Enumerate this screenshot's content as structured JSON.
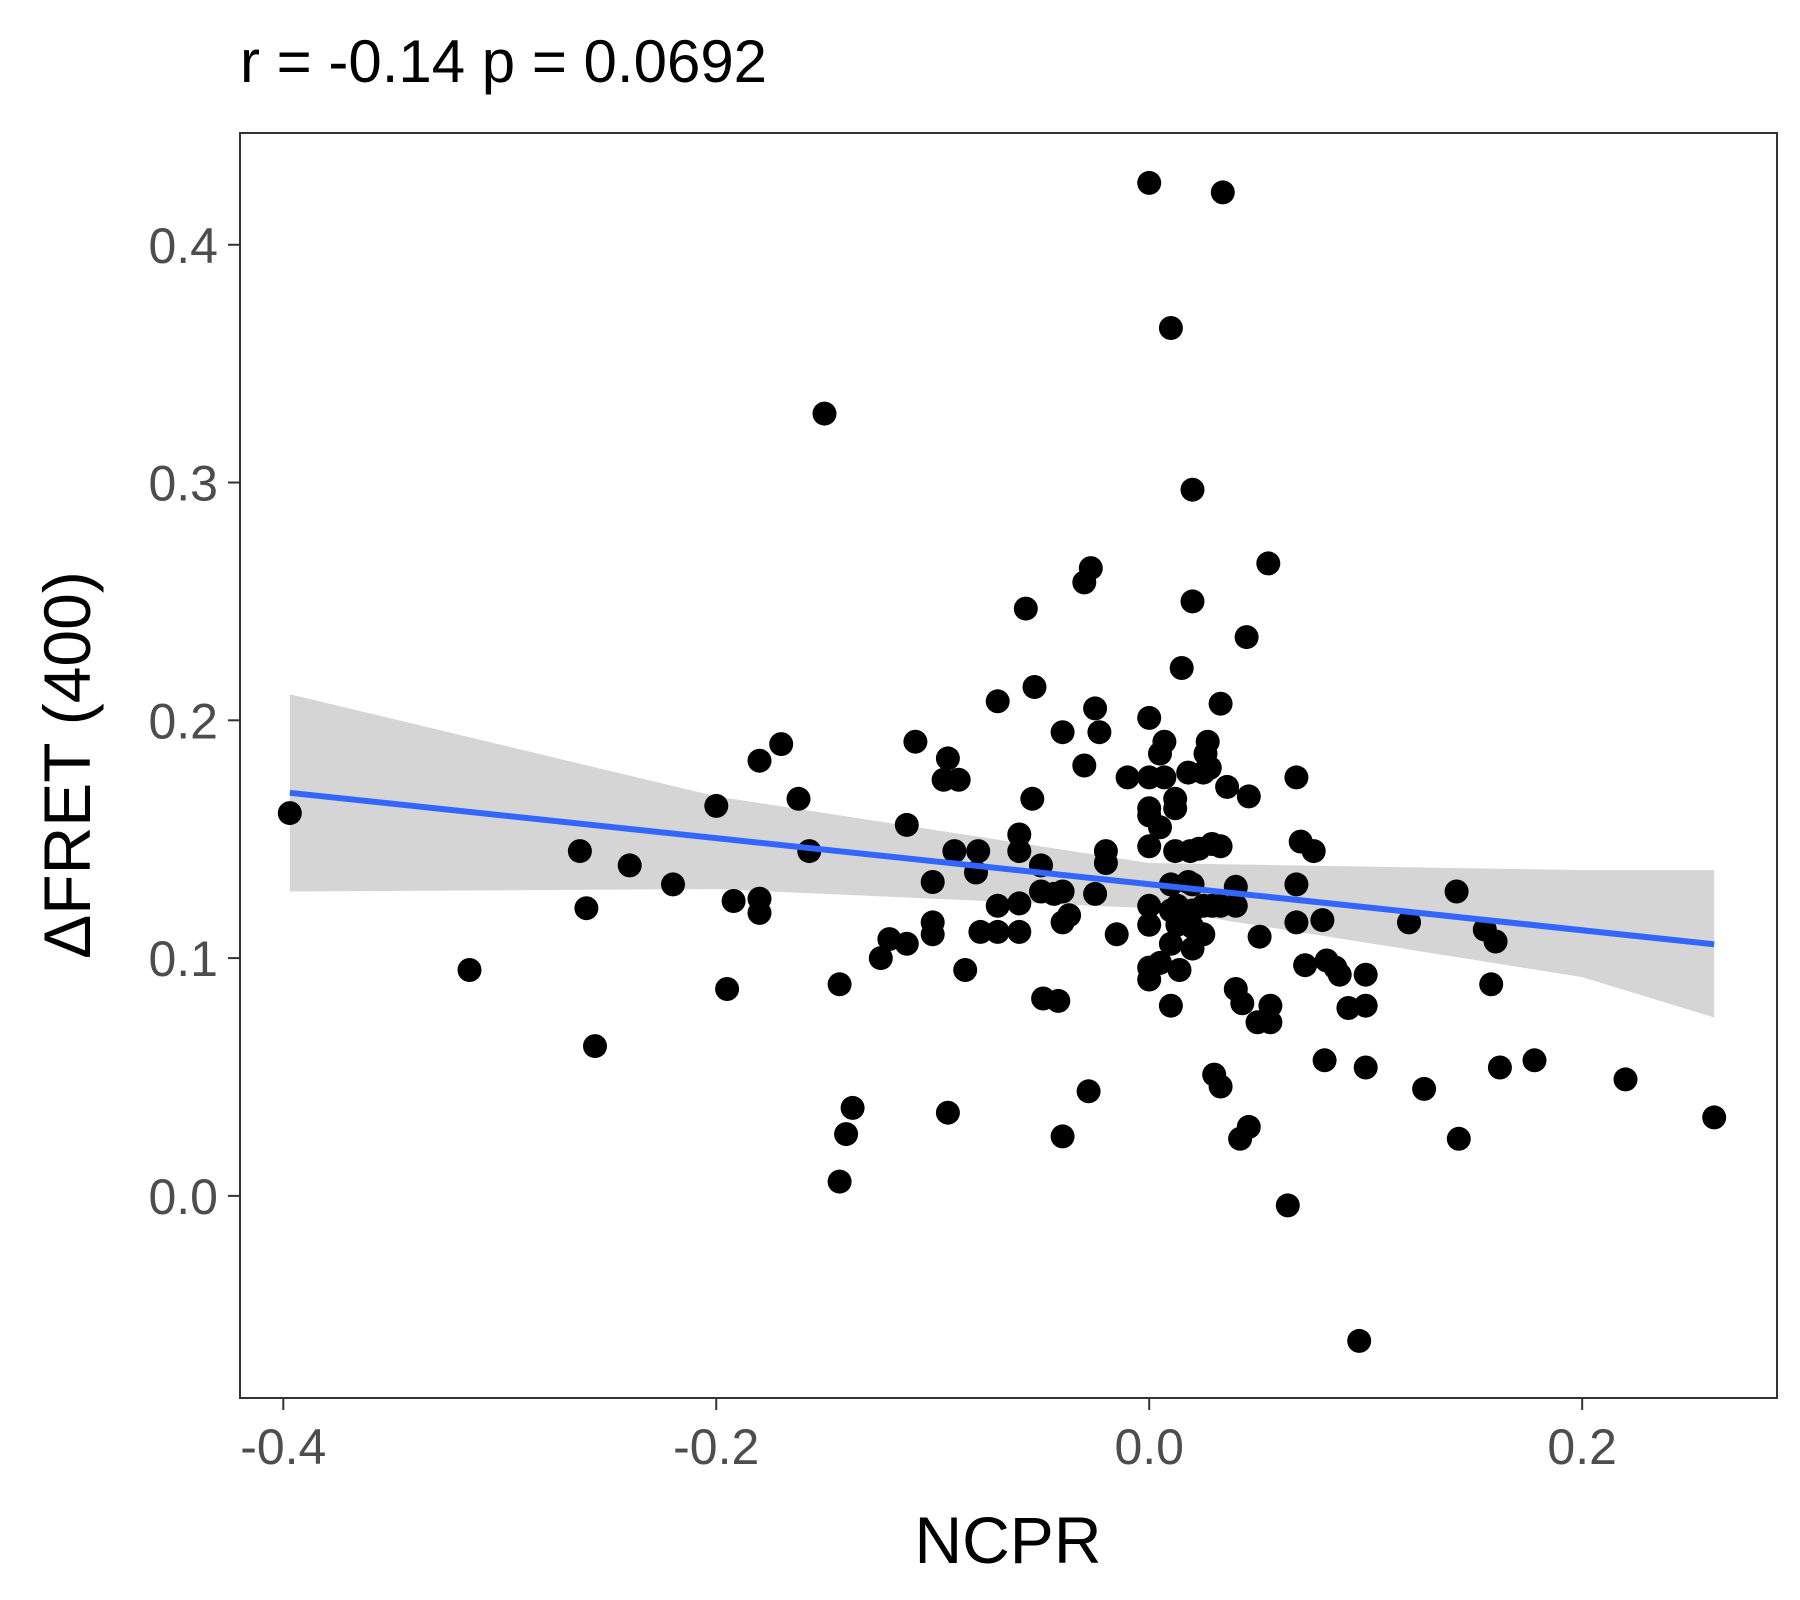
{
  "chart_data": {
    "type": "scatter",
    "title": "r =  -0.14 p =  0.0692",
    "xlabel": "NCPR",
    "ylabel": "ΔFRET (400)",
    "xlim": [
      -0.42,
      0.29
    ],
    "ylim": [
      -0.085,
      0.447
    ],
    "x_ticks": [
      -0.4,
      -0.2,
      0.0,
      0.2
    ],
    "x_tick_labels": [
      "-0.4",
      "-0.2",
      "0.0",
      "0.2"
    ],
    "y_ticks": [
      0.0,
      0.1,
      0.2,
      0.3,
      0.4
    ],
    "y_tick_labels": [
      "0.0",
      "0.1",
      "0.2",
      "0.3",
      "0.4"
    ],
    "grid": false,
    "legend": "none",
    "colors": {
      "points": "#000000",
      "fit_line": "#3366ff",
      "confidence_band": "#d3d3d3",
      "panel_border": "#333333",
      "tick_label": "#4d4d4d"
    },
    "fit": {
      "type": "linear",
      "x_range": [
        -0.397,
        0.261
      ],
      "y_start": 0.1695,
      "y_end": 0.1058
    },
    "confidence_band": {
      "x": [
        -0.397,
        -0.2,
        0.0,
        0.2,
        0.261
      ],
      "lower": [
        0.128,
        0.129,
        0.121,
        0.092,
        0.075
      ],
      "upper": [
        0.211,
        0.168,
        0.14,
        0.137,
        0.137
      ]
    },
    "points": [
      [
        -0.397,
        0.161
      ],
      [
        -0.314,
        0.095
      ],
      [
        -0.263,
        0.145
      ],
      [
        -0.26,
        0.121
      ],
      [
        -0.256,
        0.063
      ],
      [
        -0.24,
        0.139
      ],
      [
        -0.22,
        0.131
      ],
      [
        -0.2,
        0.164
      ],
      [
        -0.195,
        0.087
      ],
      [
        -0.192,
        0.124
      ],
      [
        -0.18,
        0.183
      ],
      [
        -0.18,
        0.125
      ],
      [
        -0.18,
        0.119
      ],
      [
        -0.17,
        0.19
      ],
      [
        -0.162,
        0.167
      ],
      [
        -0.157,
        0.145
      ],
      [
        -0.15,
        0.329
      ],
      [
        -0.143,
        0.089
      ],
      [
        -0.143,
        0.006
      ],
      [
        -0.14,
        0.026
      ],
      [
        -0.137,
        0.037
      ],
      [
        -0.124,
        0.1
      ],
      [
        -0.12,
        0.108
      ],
      [
        -0.112,
        0.156
      ],
      [
        -0.112,
        0.106
      ],
      [
        -0.108,
        0.191
      ],
      [
        -0.1,
        0.132
      ],
      [
        -0.1,
        0.115
      ],
      [
        -0.1,
        0.11
      ],
      [
        -0.095,
        0.175
      ],
      [
        -0.093,
        0.184
      ],
      [
        -0.093,
        0.035
      ],
      [
        -0.09,
        0.145
      ],
      [
        -0.088,
        0.175
      ],
      [
        -0.085,
        0.095
      ],
      [
        -0.08,
        0.136
      ],
      [
        -0.079,
        0.145
      ],
      [
        -0.078,
        0.111
      ],
      [
        -0.07,
        0.208
      ],
      [
        -0.07,
        0.122
      ],
      [
        -0.07,
        0.111
      ],
      [
        -0.06,
        0.152
      ],
      [
        -0.06,
        0.145
      ],
      [
        -0.06,
        0.123
      ],
      [
        -0.06,
        0.111
      ],
      [
        -0.057,
        0.247
      ],
      [
        -0.054,
        0.167
      ],
      [
        -0.053,
        0.214
      ],
      [
        -0.05,
        0.139
      ],
      [
        -0.05,
        0.128
      ],
      [
        -0.049,
        0.083
      ],
      [
        -0.044,
        0.127
      ],
      [
        -0.042,
        0.082
      ],
      [
        -0.04,
        0.195
      ],
      [
        -0.04,
        0.128
      ],
      [
        -0.04,
        0.115
      ],
      [
        -0.04,
        0.025
      ],
      [
        -0.037,
        0.118
      ],
      [
        -0.03,
        0.258
      ],
      [
        -0.03,
        0.181
      ],
      [
        -0.028,
        0.044
      ],
      [
        -0.027,
        0.264
      ],
      [
        -0.025,
        0.205
      ],
      [
        -0.025,
        0.127
      ],
      [
        -0.023,
        0.195
      ],
      [
        -0.02,
        0.145
      ],
      [
        -0.02,
        0.14
      ],
      [
        -0.015,
        0.11
      ],
      [
        -0.01,
        0.176
      ],
      [
        0.0,
        0.426
      ],
      [
        0.0,
        0.201
      ],
      [
        0.0,
        0.176
      ],
      [
        0.0,
        0.163
      ],
      [
        0.0,
        0.16
      ],
      [
        0.0,
        0.147
      ],
      [
        0.0,
        0.122
      ],
      [
        0.0,
        0.114
      ],
      [
        0.0,
        0.096
      ],
      [
        0.0,
        0.091
      ],
      [
        0.005,
        0.186
      ],
      [
        0.005,
        0.155
      ],
      [
        0.005,
        0.098
      ],
      [
        0.007,
        0.191
      ],
      [
        0.007,
        0.176
      ],
      [
        0.01,
        0.365
      ],
      [
        0.01,
        0.131
      ],
      [
        0.01,
        0.12
      ],
      [
        0.01,
        0.106
      ],
      [
        0.01,
        0.08
      ],
      [
        0.012,
        0.167
      ],
      [
        0.012,
        0.163
      ],
      [
        0.012,
        0.145
      ],
      [
        0.013,
        0.122
      ],
      [
        0.013,
        0.114
      ],
      [
        0.014,
        0.095
      ],
      [
        0.015,
        0.222
      ],
      [
        0.018,
        0.132
      ],
      [
        0.018,
        0.178
      ],
      [
        0.019,
        0.145
      ],
      [
        0.02,
        0.297
      ],
      [
        0.02,
        0.25
      ],
      [
        0.02,
        0.131
      ],
      [
        0.02,
        0.12
      ],
      [
        0.02,
        0.113
      ],
      [
        0.02,
        0.104
      ],
      [
        0.023,
        0.146
      ],
      [
        0.025,
        0.178
      ],
      [
        0.025,
        0.122
      ],
      [
        0.025,
        0.11
      ],
      [
        0.026,
        0.186
      ],
      [
        0.027,
        0.191
      ],
      [
        0.028,
        0.18
      ],
      [
        0.029,
        0.148
      ],
      [
        0.029,
        0.122
      ],
      [
        0.03,
        0.051
      ],
      [
        0.033,
        0.147
      ],
      [
        0.033,
        0.122
      ],
      [
        0.033,
        0.207
      ],
      [
        0.033,
        0.046
      ],
      [
        0.034,
        0.422
      ],
      [
        0.036,
        0.172
      ],
      [
        0.04,
        0.13
      ],
      [
        0.04,
        0.122
      ],
      [
        0.04,
        0.087
      ],
      [
        0.042,
        0.024
      ],
      [
        0.043,
        0.081
      ],
      [
        0.045,
        0.235
      ],
      [
        0.046,
        0.168
      ],
      [
        0.046,
        0.029
      ],
      [
        0.05,
        0.073
      ],
      [
        0.051,
        0.109
      ],
      [
        0.055,
        0.266
      ],
      [
        0.056,
        0.08
      ],
      [
        0.056,
        0.073
      ],
      [
        0.064,
        -0.004
      ],
      [
        0.068,
        0.176
      ],
      [
        0.068,
        0.131
      ],
      [
        0.068,
        0.115
      ],
      [
        0.07,
        0.149
      ],
      [
        0.072,
        0.097
      ],
      [
        0.076,
        0.145
      ],
      [
        0.08,
        0.116
      ],
      [
        0.081,
        0.057
      ],
      [
        0.082,
        0.099
      ],
      [
        0.086,
        0.096
      ],
      [
        0.088,
        0.093
      ],
      [
        0.092,
        0.079
      ],
      [
        0.097,
        -0.061
      ],
      [
        0.1,
        0.093
      ],
      [
        0.1,
        0.08
      ],
      [
        0.1,
        0.054
      ],
      [
        0.12,
        0.115
      ],
      [
        0.127,
        0.045
      ],
      [
        0.142,
        0.128
      ],
      [
        0.143,
        0.024
      ],
      [
        0.155,
        0.112
      ],
      [
        0.158,
        0.089
      ],
      [
        0.16,
        0.107
      ],
      [
        0.162,
        0.054
      ],
      [
        0.178,
        0.057
      ],
      [
        0.22,
        0.049
      ],
      [
        0.261,
        0.033
      ]
    ]
  }
}
